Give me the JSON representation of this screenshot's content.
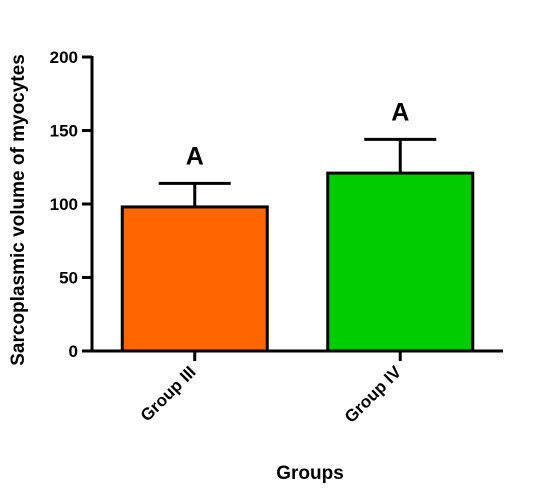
{
  "chart_data": {
    "type": "bar",
    "title": "",
    "xlabel": "Groups",
    "ylabel": "Sarcoplasmic volume of myocytes",
    "ylim": [
      0,
      200
    ],
    "yticks": [
      "0",
      "50",
      "100",
      "150",
      "200"
    ],
    "categories": [
      "Group III",
      "Group IV"
    ],
    "values": [
      98,
      121
    ],
    "error_upper": [
      114,
      144
    ],
    "significance_labels": [
      "A",
      "A"
    ],
    "colors": [
      "#ff6600",
      "#00cc00"
    ],
    "grid": false,
    "legend": "none"
  }
}
